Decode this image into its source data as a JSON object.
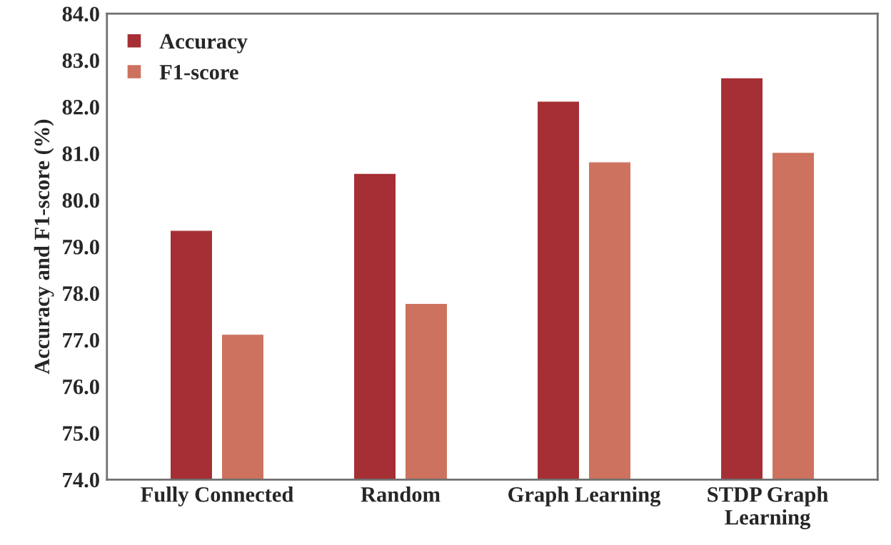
{
  "chart_data": {
    "type": "bar",
    "ylabel": "Accuracy and F1-score (%)",
    "categories": [
      "Fully Connected",
      "Random",
      "Graph Learning",
      "STDP Graph\nLearning"
    ],
    "series": [
      {
        "name": "Accuracy",
        "color": "#a52f34",
        "values": [
          79.33,
          80.55,
          82.1,
          82.6
        ]
      },
      {
        "name": "F1-score",
        "color": "#cd725e",
        "values": [
          77.1,
          77.76,
          80.8,
          81.0
        ]
      }
    ],
    "ylim": [
      74,
      84
    ],
    "yticks": [
      {
        "value": 74,
        "label": "74.0"
      },
      {
        "value": 75,
        "label": "75.0"
      },
      {
        "value": 76,
        "label": "76.0"
      },
      {
        "value": 77,
        "label": "77.0"
      },
      {
        "value": 78,
        "label": "78.0"
      },
      {
        "value": 79,
        "label": "79.0"
      },
      {
        "value": 80,
        "label": "80.0"
      },
      {
        "value": 81,
        "label": "81.0"
      },
      {
        "value": 82,
        "label": "82.0"
      },
      {
        "value": 83,
        "label": "83.0"
      },
      {
        "value": 84,
        "label": "84.0"
      }
    ],
    "grid": false,
    "legend": "top left"
  }
}
